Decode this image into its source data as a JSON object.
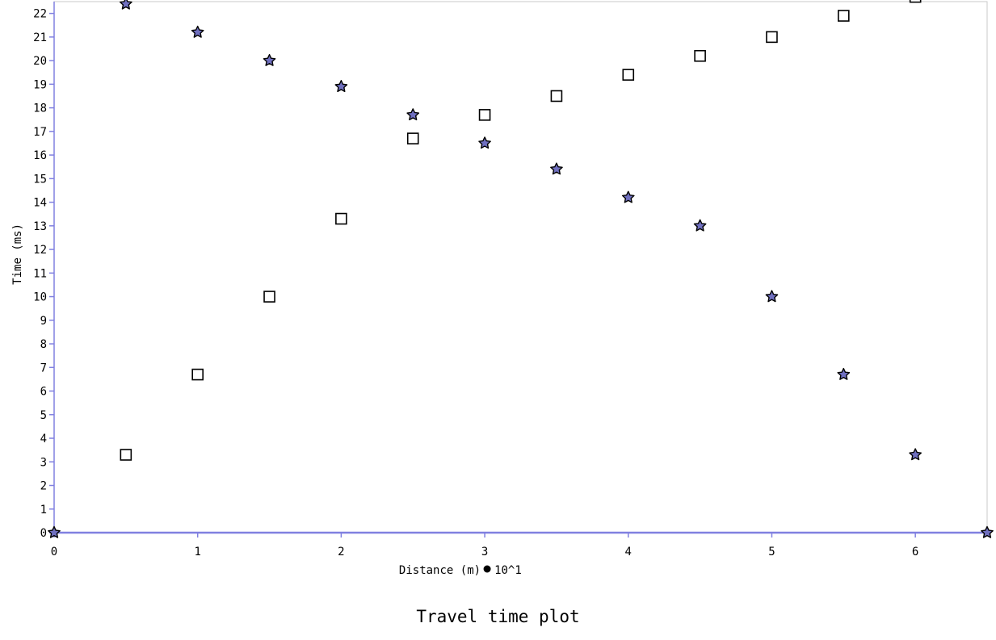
{
  "caption": "Travel time plot",
  "chart_data": {
    "type": "scatter",
    "title": "",
    "xlabel": "Distance (m)",
    "xlabel_multiplier": "10^1",
    "ylabel": "Time (ms)",
    "xlim": [
      0,
      6.5
    ],
    "ylim": [
      0,
      22.5
    ],
    "x_ticks": [
      "0",
      "1",
      "2",
      "3",
      "4",
      "5",
      "6"
    ],
    "y_ticks": [
      "0",
      "1",
      "2",
      "3",
      "4",
      "5",
      "6",
      "7",
      "8",
      "9",
      "10",
      "11",
      "12",
      "13",
      "14",
      "15",
      "16",
      "17",
      "18",
      "19",
      "20",
      "21",
      "22"
    ],
    "grid": false,
    "colors": {
      "axis": "#8080e0",
      "frame": "#c8c8c8",
      "star_fill": "#7070c0",
      "square_fill": "#ffffff",
      "marker_stroke": "#000000"
    },
    "series": [
      {
        "marker": "star",
        "points": [
          [
            0,
            0
          ],
          [
            0.5,
            22.4
          ],
          [
            1.0,
            21.2
          ],
          [
            1.5,
            20.0
          ],
          [
            2.0,
            18.9
          ],
          [
            2.5,
            17.7
          ],
          [
            3.0,
            16.5
          ],
          [
            3.5,
            15.4
          ],
          [
            4.0,
            14.2
          ],
          [
            4.5,
            13.0
          ],
          [
            5.0,
            10.0
          ],
          [
            5.5,
            6.7
          ],
          [
            6.0,
            3.3
          ],
          [
            6.5,
            0
          ]
        ]
      },
      {
        "marker": "square",
        "points": [
          [
            0.5,
            3.3
          ],
          [
            1.0,
            6.7
          ],
          [
            1.5,
            10.0
          ],
          [
            2.0,
            13.3
          ],
          [
            2.5,
            16.7
          ],
          [
            3.0,
            17.7
          ],
          [
            3.5,
            18.5
          ],
          [
            4.0,
            19.4
          ],
          [
            4.5,
            20.2
          ],
          [
            5.0,
            21.0
          ],
          [
            5.5,
            21.9
          ],
          [
            6.0,
            22.7
          ]
        ]
      }
    ]
  }
}
